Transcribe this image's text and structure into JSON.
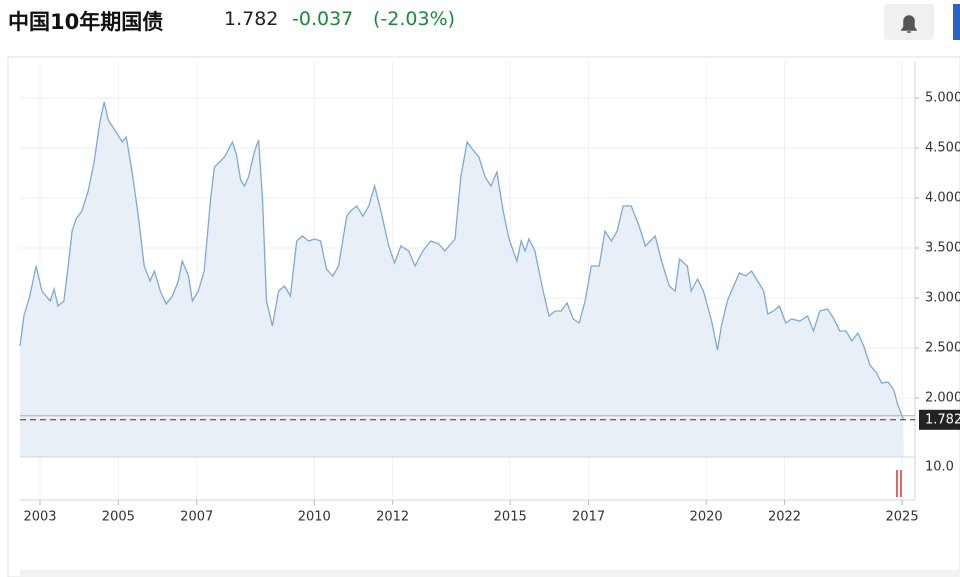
{
  "header": {
    "title": "中国10年期国债",
    "price": "1.782",
    "change": "-0.037",
    "change_percent": "(-2.03%)"
  },
  "chart_data": {
    "type": "area",
    "x": [
      2002.49,
      2002.59,
      2002.74,
      2002.9,
      2003.05,
      2003.26,
      2003.36,
      2003.46,
      2003.61,
      2003.72,
      2003.82,
      2003.92,
      2004.07,
      2004.23,
      2004.38,
      2004.53,
      2004.64,
      2004.74,
      2004.94,
      2005.1,
      2005.2,
      2005.35,
      2005.51,
      2005.66,
      2005.81,
      2005.92,
      2006.07,
      2006.22,
      2006.38,
      2006.53,
      2006.63,
      2006.79,
      2006.89,
      2007.04,
      2007.19,
      2007.35,
      2007.45,
      2007.71,
      2007.91,
      2008.01,
      2008.12,
      2008.22,
      2008.32,
      2008.47,
      2008.58,
      2008.68,
      2008.78,
      2008.93,
      2009.09,
      2009.24,
      2009.39,
      2009.55,
      2009.7,
      2009.85,
      2010.01,
      2010.16,
      2010.31,
      2010.47,
      2010.62,
      2010.83,
      2010.93,
      2011.08,
      2011.24,
      2011.39,
      2011.54,
      2011.7,
      2011.9,
      2012.05,
      2012.21,
      2012.41,
      2012.57,
      2012.77,
      2012.97,
      2013.18,
      2013.33,
      2013.59,
      2013.74,
      2013.9,
      2014.05,
      2014.2,
      2014.36,
      2014.51,
      2014.66,
      2014.82,
      2014.97,
      2015.17,
      2015.28,
      2015.38,
      2015.48,
      2015.63,
      2015.84,
      2015.99,
      2016.15,
      2016.3,
      2016.45,
      2016.61,
      2016.76,
      2016.91,
      2017.07,
      2017.27,
      2017.42,
      2017.58,
      2017.73,
      2017.88,
      2018.09,
      2018.29,
      2018.45,
      2018.7,
      2018.86,
      2019.06,
      2019.21,
      2019.32,
      2019.52,
      2019.62,
      2019.78,
      2019.93,
      2020.14,
      2020.29,
      2020.39,
      2020.54,
      2020.7,
      2020.85,
      2021.01,
      2021.16,
      2021.31,
      2021.47,
      2021.57,
      2021.72,
      2021.87,
      2022.03,
      2022.18,
      2022.39,
      2022.59,
      2022.74,
      2022.9,
      2023.1,
      2023.26,
      2023.41,
      2023.57,
      2023.72,
      2023.87,
      2024.02,
      2024.18,
      2024.33,
      2024.48,
      2024.64,
      2024.79,
      2024.89,
      2025.04
    ],
    "values": [
      2.52,
      2.82,
      3.02,
      3.32,
      3.07,
      2.97,
      3.09,
      2.92,
      2.97,
      3.32,
      3.67,
      3.79,
      3.87,
      4.07,
      4.36,
      4.76,
      4.96,
      4.78,
      4.66,
      4.56,
      4.61,
      4.26,
      3.82,
      3.32,
      3.17,
      3.27,
      3.07,
      2.94,
      3.02,
      3.17,
      3.37,
      3.22,
      2.97,
      3.07,
      3.27,
      3.97,
      4.31,
      4.41,
      4.56,
      4.44,
      4.18,
      4.12,
      4.21,
      4.46,
      4.58,
      3.97,
      2.97,
      2.72,
      3.07,
      3.12,
      3.02,
      3.57,
      3.62,
      3.57,
      3.59,
      3.57,
      3.29,
      3.22,
      3.32,
      3.82,
      3.87,
      3.92,
      3.82,
      3.92,
      4.12,
      3.87,
      3.52,
      3.35,
      3.52,
      3.47,
      3.32,
      3.47,
      3.57,
      3.54,
      3.47,
      3.59,
      4.21,
      4.56,
      4.48,
      4.41,
      4.21,
      4.12,
      4.26,
      3.87,
      3.59,
      3.37,
      3.57,
      3.47,
      3.59,
      3.47,
      3.07,
      2.82,
      2.87,
      2.87,
      2.95,
      2.79,
      2.75,
      2.97,
      3.32,
      3.32,
      3.67,
      3.57,
      3.67,
      3.92,
      3.92,
      3.72,
      3.52,
      3.62,
      3.37,
      3.12,
      3.07,
      3.39,
      3.32,
      3.07,
      3.19,
      3.07,
      2.77,
      2.48,
      2.72,
      2.97,
      3.12,
      3.25,
      3.22,
      3.27,
      3.17,
      3.07,
      2.84,
      2.87,
      2.92,
      2.75,
      2.79,
      2.77,
      2.82,
      2.67,
      2.87,
      2.89,
      2.79,
      2.67,
      2.67,
      2.57,
      2.65,
      2.52,
      2.33,
      2.26,
      2.15,
      2.16,
      2.08,
      1.93,
      1.782
    ],
    "color": "#7eaad4",
    "fill": "#e8eff6",
    "xlim": [
      2002.49,
      2025.33
    ],
    "xticks": [
      2003,
      2005,
      2007,
      2010,
      2012,
      2015,
      2017,
      2020,
      2022,
      2025
    ],
    "ylim": [
      1.41,
      5.36
    ],
    "yticks": [
      {
        "value": 2,
        "label": "2.000"
      },
      {
        "value": 2.5,
        "label": "2.500"
      },
      {
        "value": 3,
        "label": "3.000"
      },
      {
        "value": 3.5,
        "label": "3.500"
      },
      {
        "value": 4,
        "label": "4.000"
      },
      {
        "value": 4.5,
        "label": "4.500"
      },
      {
        "value": 5,
        "label": "5.000"
      }
    ],
    "last_value": {
      "value": 1.782,
      "label": "1.782"
    },
    "volume_tick": "10.0",
    "grid": true
  }
}
